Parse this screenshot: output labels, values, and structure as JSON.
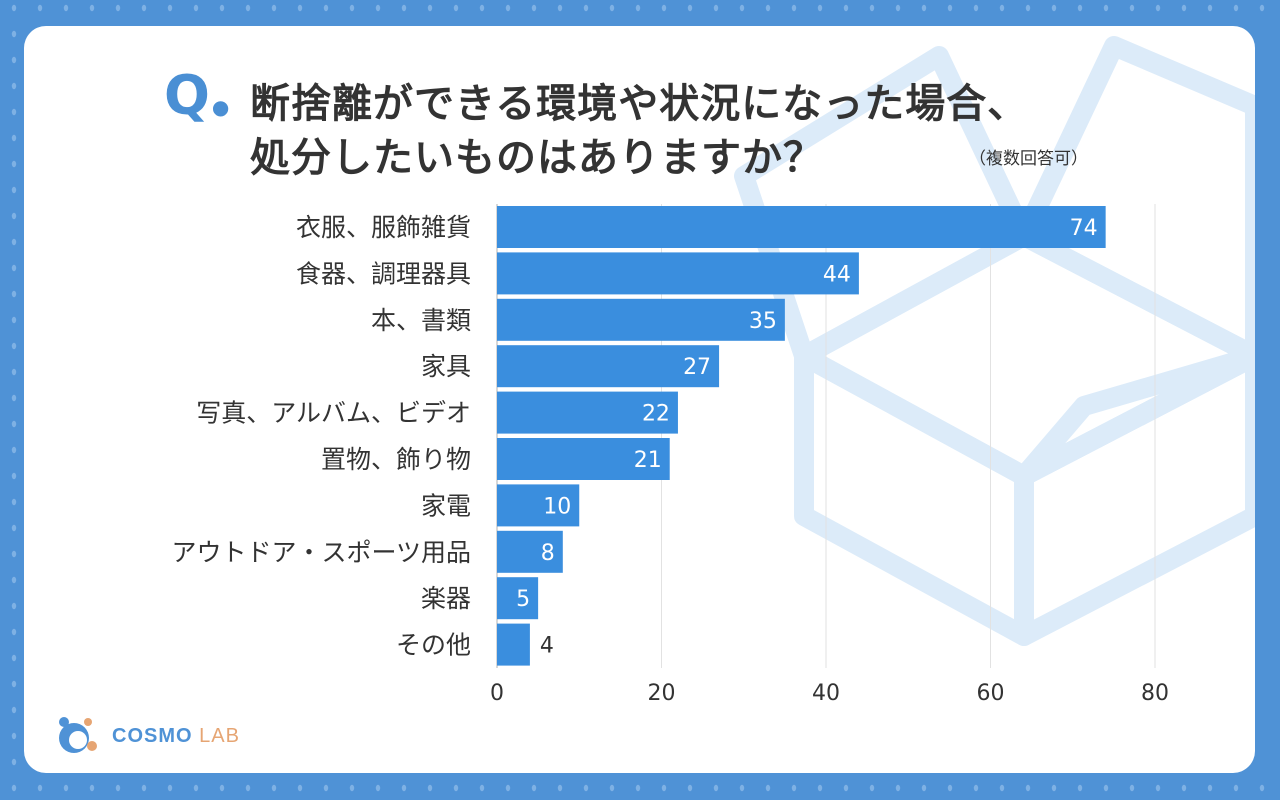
{
  "question": {
    "mark": "Q",
    "line1": "断捨離ができる環境や状況になった場合、",
    "line2": "処分したいものはありますか？",
    "note": "（複数回答可）"
  },
  "colors": {
    "frame": "#4f92d6",
    "bar": "#3a8ede",
    "accent": "#4a8fd4"
  },
  "chart_data": {
    "type": "bar",
    "orientation": "horizontal",
    "title": "断捨離ができる環境や状況になった場合、処分したいものはありますか？（複数回答可）",
    "categories": [
      "衣服、服飾雑貨",
      "食器、調理器具",
      "本、書類",
      "家具",
      "写真、アルバム、ビデオ",
      "置物、飾り物",
      "家電",
      "アウトドア・スポーツ用品",
      "楽器",
      "その他"
    ],
    "values": [
      74,
      44,
      35,
      27,
      22,
      21,
      10,
      8,
      5,
      4
    ],
    "xlim": [
      0,
      80
    ],
    "ticks": [
      0,
      20,
      40,
      60,
      80
    ],
    "grid": true
  },
  "logo": {
    "name": "COSMO",
    "suffix": "LAB"
  }
}
